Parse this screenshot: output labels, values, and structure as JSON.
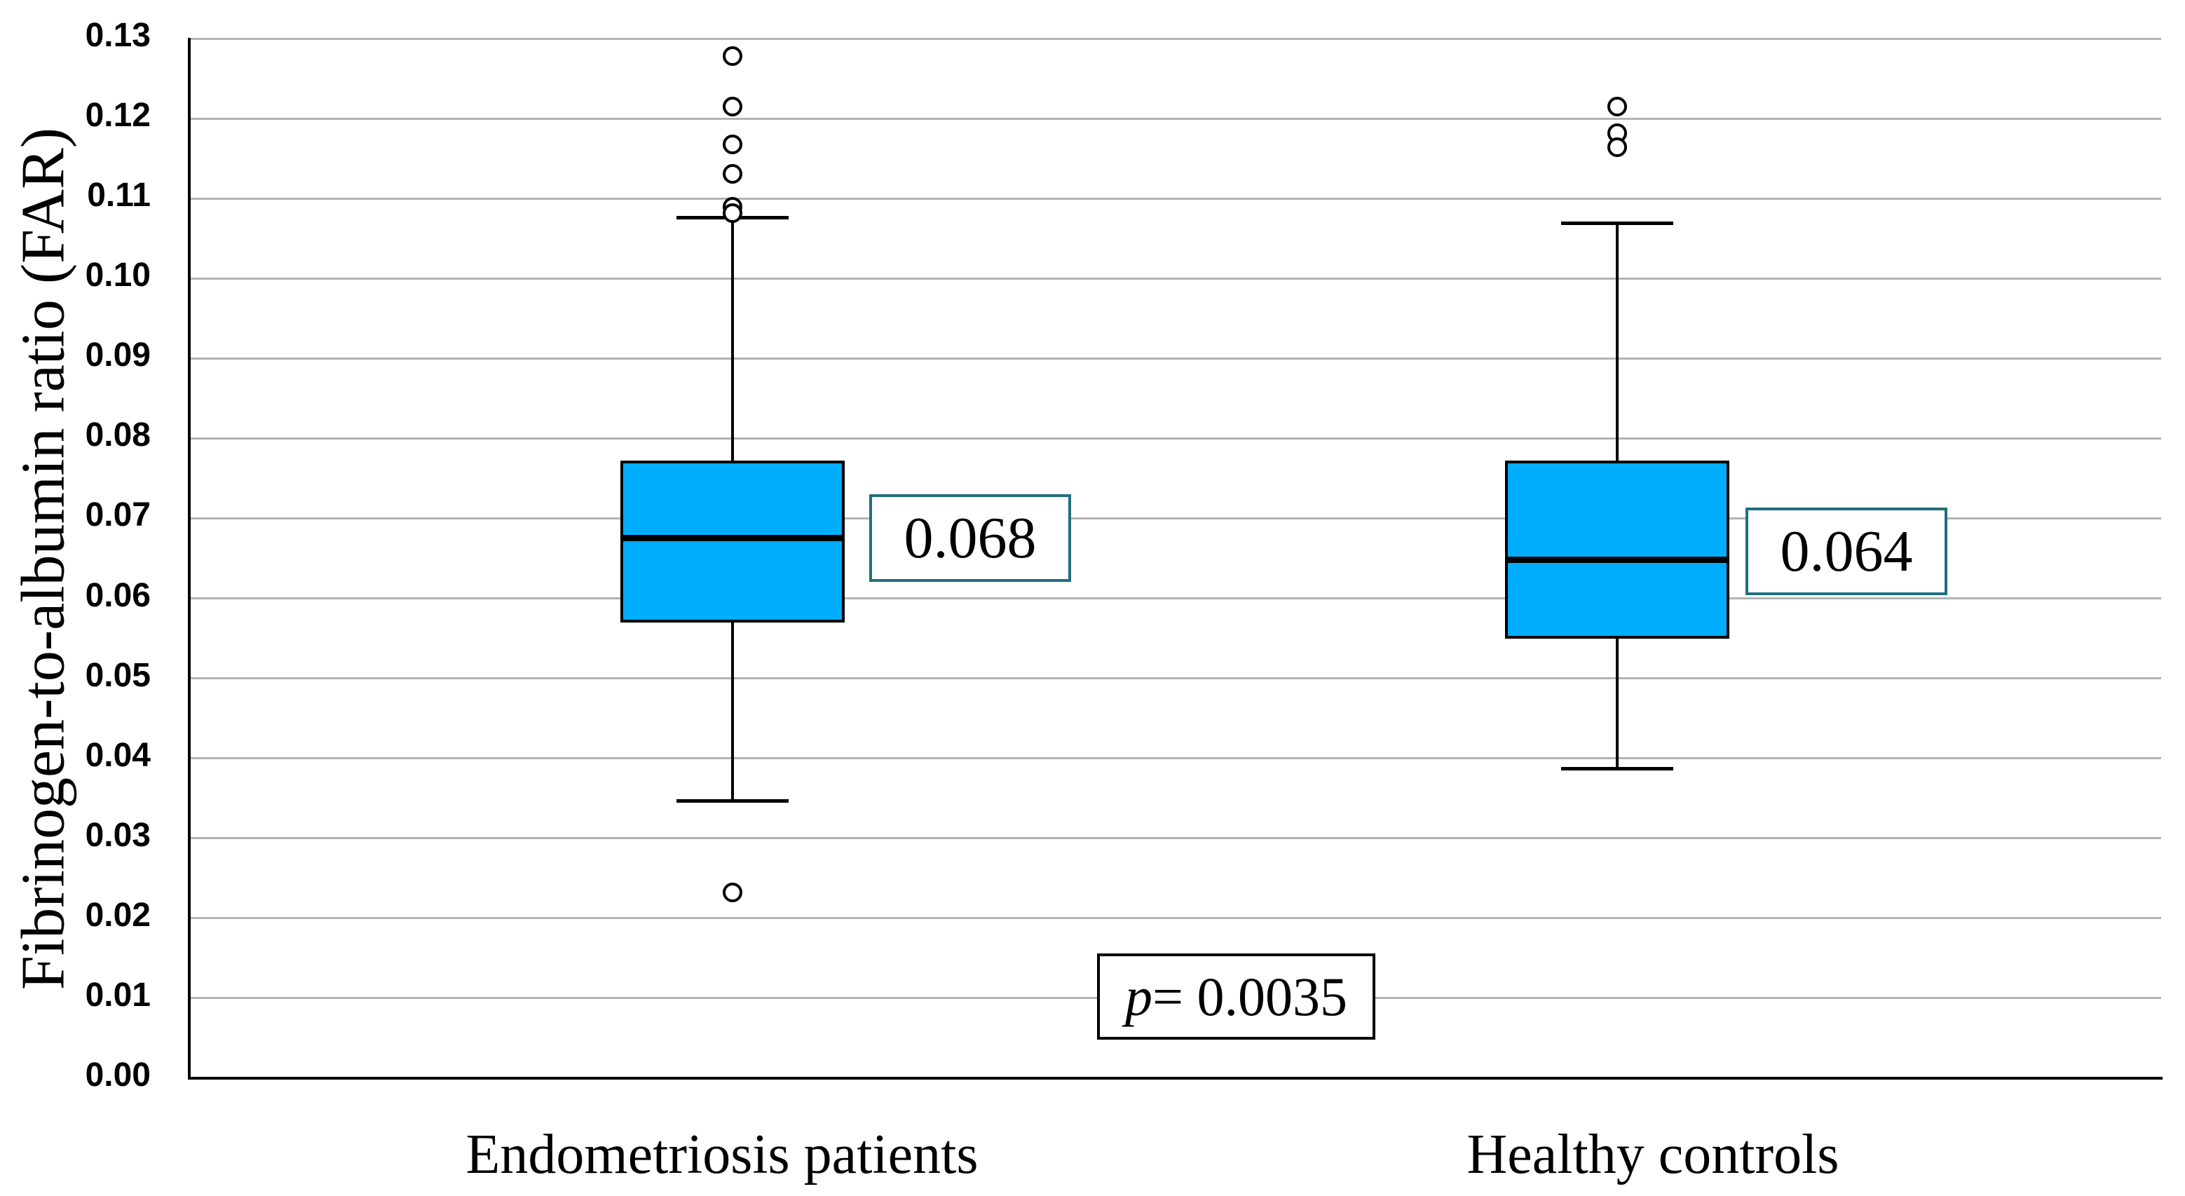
{
  "chart_data": {
    "type": "boxplot",
    "ylabel": "Fibrinogen-to-albumin ratio (FAR)",
    "ylim": [
      0,
      0.13
    ],
    "ytick_interval": 0.01,
    "ytick_labels": [
      "0.00",
      "0.01",
      "0.02",
      "0.03",
      "0.04",
      "0.05",
      "0.06",
      "0.07",
      "0.08",
      "0.09",
      "0.10",
      "0.11",
      "0.12",
      "0.13"
    ],
    "grid": "horizontal-gray-lines",
    "legend": "none",
    "categories": [
      "Endometriosis patients",
      "Healthy controls"
    ],
    "series": [
      {
        "name": "Endometriosis patients",
        "median_label": "0.068",
        "q1": 0.057,
        "median": 0.0675,
        "q3": 0.0772,
        "whisker_low": 0.0347,
        "whisker_high": 0.1076,
        "outliers_high": [
          0.1278,
          0.1215,
          0.1168,
          0.1131,
          0.109,
          0.1082
        ],
        "outliers_low": [
          0.0232
        ]
      },
      {
        "name": "Healthy controls",
        "median_label": "0.064",
        "q1": 0.055,
        "median": 0.0648,
        "q3": 0.0772,
        "whisker_low": 0.0387,
        "whisker_high": 0.1069,
        "outliers_high": [
          0.1215,
          0.1182,
          0.1164
        ],
        "outliers_low": []
      }
    ],
    "annotation": {
      "text": "p = 0.0035",
      "italic_part": "p",
      "rest_part": " = 0.0035"
    }
  },
  "colors": {
    "background": "#ffffff",
    "box_fill": "#00adfc",
    "box_border": "#000000",
    "median_line": "#000000",
    "whisker": "#000000",
    "outlier_stroke": "#000000",
    "gridline": "#b3b3b3",
    "axis_line": "#000000",
    "median_label_border": "#1f6f80",
    "annotation_border": "#000000",
    "text": "#000000"
  }
}
